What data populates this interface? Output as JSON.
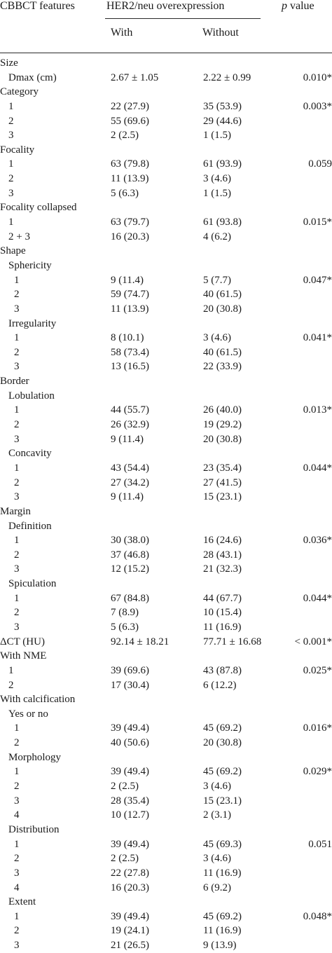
{
  "header": {
    "features": "CBBCT features",
    "group": "HER2/neu overexpression",
    "with": "With",
    "without": "Without",
    "p_prefix": "p",
    "p_suffix": " value"
  },
  "rows": [
    {
      "label": "Size",
      "level": 0,
      "with": "",
      "without": "",
      "p": ""
    },
    {
      "label": "Dmax (cm)",
      "level": 1,
      "with": "2.67 ± 1.05",
      "without": "2.22 ± 0.99",
      "p": "0.010*"
    },
    {
      "label": "Category",
      "level": 0,
      "with": "",
      "without": "",
      "p": ""
    },
    {
      "label": "1",
      "level": 1,
      "with": "22 (27.9)",
      "without": "35 (53.9)",
      "p": "0.003*"
    },
    {
      "label": "2",
      "level": 1,
      "with": "55 (69.6)",
      "without": "29 (44.6)",
      "p": ""
    },
    {
      "label": "3",
      "level": 1,
      "with": "2 (2.5)",
      "without": "1 (1.5)",
      "p": ""
    },
    {
      "label": "Focality",
      "level": 0,
      "with": "",
      "without": "",
      "p": ""
    },
    {
      "label": "1",
      "level": 1,
      "with": "63 (79.8)",
      "without": "61 (93.9)",
      "p": "0.059"
    },
    {
      "label": "2",
      "level": 1,
      "with": "11 (13.9)",
      "without": "3 (4.6)",
      "p": ""
    },
    {
      "label": "3",
      "level": 1,
      "with": "5 (6.3)",
      "without": "1 (1.5)",
      "p": ""
    },
    {
      "label": "Focality collapsed",
      "level": 0,
      "with": "",
      "without": "",
      "p": ""
    },
    {
      "label": "1",
      "level": 1,
      "with": "63 (79.7)",
      "without": "61 (93.8)",
      "p": "0.015*"
    },
    {
      "label": "2 + 3",
      "level": 1,
      "with": "16 (20.3)",
      "without": "4 (6.2)",
      "p": ""
    },
    {
      "label": "Shape",
      "level": 0,
      "with": "",
      "without": "",
      "p": ""
    },
    {
      "label": "Sphericity",
      "level": 1,
      "with": "",
      "without": "",
      "p": ""
    },
    {
      "label": "1",
      "level": 2,
      "with": "9 (11.4)",
      "without": "5 (7.7)",
      "p": "0.047*"
    },
    {
      "label": "2",
      "level": 2,
      "with": "59 (74.7)",
      "without": "40 (61.5)",
      "p": ""
    },
    {
      "label": "3",
      "level": 2,
      "with": "11 (13.9)",
      "without": "20 (30.8)",
      "p": ""
    },
    {
      "label": "Irregularity",
      "level": 1,
      "with": "",
      "without": "",
      "p": ""
    },
    {
      "label": "1",
      "level": 2,
      "with": "8 (10.1)",
      "without": "3 (4.6)",
      "p": "0.041*"
    },
    {
      "label": "2",
      "level": 2,
      "with": "58 (73.4)",
      "without": "40 (61.5)",
      "p": ""
    },
    {
      "label": "3",
      "level": 2,
      "with": "13 (16.5)",
      "without": "22 (33.9)",
      "p": ""
    },
    {
      "label": "Border",
      "level": 0,
      "with": "",
      "without": "",
      "p": ""
    },
    {
      "label": "Lobulation",
      "level": 1,
      "with": "",
      "without": "",
      "p": ""
    },
    {
      "label": "1",
      "level": 2,
      "with": "44 (55.7)",
      "without": "26 (40.0)",
      "p": "0.013*"
    },
    {
      "label": "2",
      "level": 2,
      "with": "26 (32.9)",
      "without": "19 (29.2)",
      "p": ""
    },
    {
      "label": "3",
      "level": 2,
      "with": "9 (11.4)",
      "without": "20 (30.8)",
      "p": ""
    },
    {
      "label": "Concavity",
      "level": 1,
      "with": "",
      "without": "",
      "p": ""
    },
    {
      "label": "1",
      "level": 2,
      "with": "43 (54.4)",
      "without": "23 (35.4)",
      "p": "0.044*"
    },
    {
      "label": "2",
      "level": 2,
      "with": "27 (34.2)",
      "without": "27 (41.5)",
      "p": ""
    },
    {
      "label": "3",
      "level": 2,
      "with": "9 (11.4)",
      "without": "15 (23.1)",
      "p": ""
    },
    {
      "label": "Margin",
      "level": 0,
      "with": "",
      "without": "",
      "p": ""
    },
    {
      "label": "Definition",
      "level": 1,
      "with": "",
      "without": "",
      "p": ""
    },
    {
      "label": "1",
      "level": 2,
      "with": "30 (38.0)",
      "without": "16 (24.6)",
      "p": "0.036*"
    },
    {
      "label": "2",
      "level": 2,
      "with": "37 (46.8)",
      "without": "28 (43.1)",
      "p": ""
    },
    {
      "label": "3",
      "level": 2,
      "with": "12 (15.2)",
      "without": "21 (32.3)",
      "p": ""
    },
    {
      "label": "Spiculation",
      "level": 1,
      "with": "",
      "without": "",
      "p": ""
    },
    {
      "label": "1",
      "level": 2,
      "with": "67 (84.8)",
      "without": "44 (67.7)",
      "p": "0.044*"
    },
    {
      "label": "2",
      "level": 2,
      "with": "7 (8.9)",
      "without": "10 (15.4)",
      "p": ""
    },
    {
      "label": "3",
      "level": 2,
      "with": "5 (6.3)",
      "without": "11 (16.9)",
      "p": ""
    },
    {
      "label": "ΔCT (HU)",
      "level": 0,
      "with": "92.14 ± 18.21",
      "without": "77.71 ± 16.68",
      "p": "< 0.001*"
    },
    {
      "label": "With NME",
      "level": 0,
      "with": "",
      "without": "",
      "p": ""
    },
    {
      "label": "1",
      "level": 1,
      "with": "39 (69.6)",
      "without": "43 (87.8)",
      "p": "0.025*"
    },
    {
      "label": "2",
      "level": 1,
      "with": "17 (30.4)",
      "without": "6 (12.2)",
      "p": ""
    },
    {
      "label": "With calcification",
      "level": 0,
      "with": "",
      "without": "",
      "p": ""
    },
    {
      "label": "Yes or no",
      "level": 1,
      "with": "",
      "without": "",
      "p": ""
    },
    {
      "label": "1",
      "level": 2,
      "with": "39 (49.4)",
      "without": "45 (69.2)",
      "p": "0.016*"
    },
    {
      "label": "2",
      "level": 2,
      "with": "40 (50.6)",
      "without": "20 (30.8)",
      "p": ""
    },
    {
      "label": "Morphology",
      "level": 1,
      "with": "",
      "without": "",
      "p": ""
    },
    {
      "label": "1",
      "level": 2,
      "with": "39 (49.4)",
      "without": "45 (69.2)",
      "p": "0.029*"
    },
    {
      "label": "2",
      "level": 2,
      "with": "2 (2.5)",
      "without": "3 (4.6)",
      "p": ""
    },
    {
      "label": "3",
      "level": 2,
      "with": "28 (35.4)",
      "without": "15 (23.1)",
      "p": ""
    },
    {
      "label": "4",
      "level": 2,
      "with": "10 (12.7)",
      "without": "2 (3.1)",
      "p": ""
    },
    {
      "label": "Distribution",
      "level": 1,
      "with": "",
      "without": "",
      "p": ""
    },
    {
      "label": "1",
      "level": 2,
      "with": "39 (49.4)",
      "without": "45 (69.3)",
      "p": "0.051"
    },
    {
      "label": "2",
      "level": 2,
      "with": "2 (2.5)",
      "without": "3 (4.6)",
      "p": ""
    },
    {
      "label": "3",
      "level": 2,
      "with": "22 (27.8)",
      "without": "11 (16.9)",
      "p": ""
    },
    {
      "label": "4",
      "level": 2,
      "with": "16 (20.3)",
      "without": "6 (9.2)",
      "p": ""
    },
    {
      "label": "Extent",
      "level": 1,
      "with": "",
      "without": "",
      "p": ""
    },
    {
      "label": "1",
      "level": 2,
      "with": "39 (49.4)",
      "without": "45 (69.2)",
      "p": "0.048*"
    },
    {
      "label": "2",
      "level": 2,
      "with": "19 (24.1)",
      "without": "11 (16.9)",
      "p": ""
    },
    {
      "label": "3",
      "level": 2,
      "with": "21 (26.5)",
      "without": "9 (13.9)",
      "p": ""
    }
  ]
}
